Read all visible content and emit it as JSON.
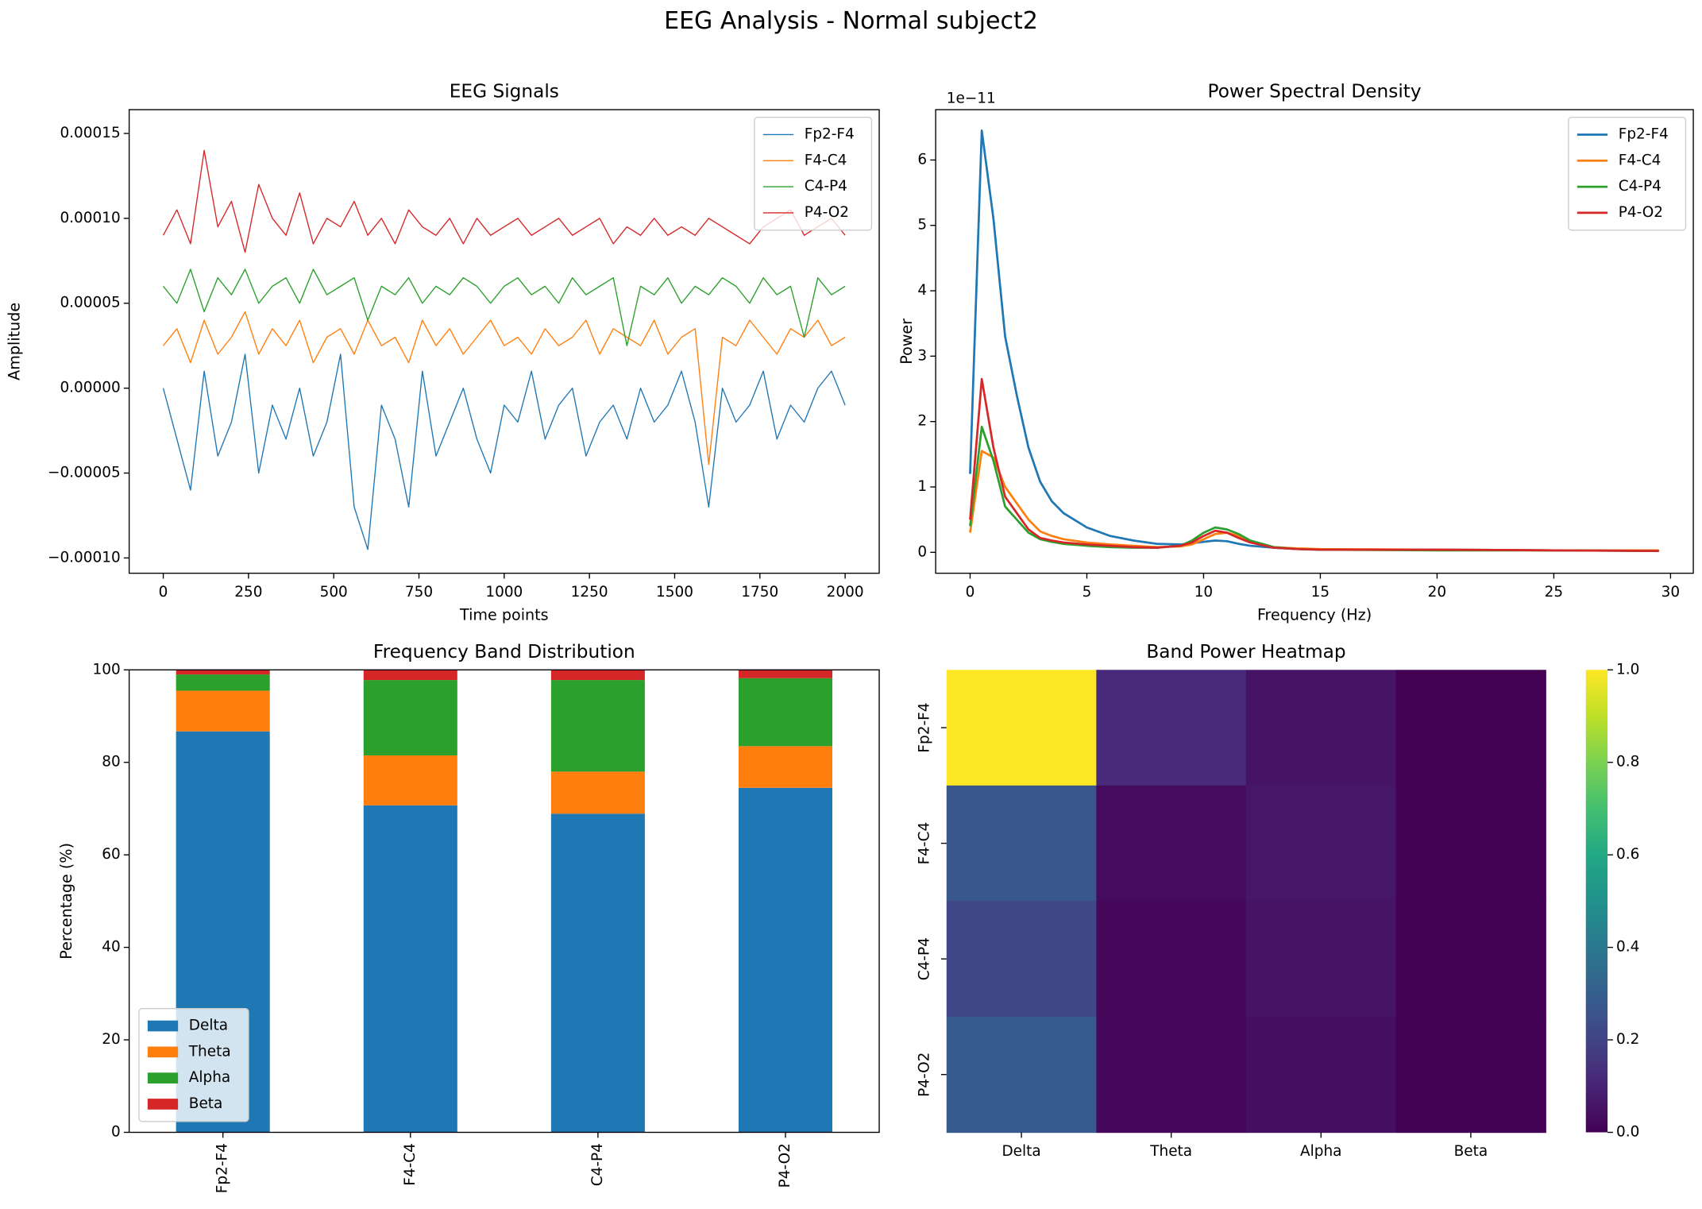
{
  "title": "EEG Analysis - Normal subject2",
  "chart_data": [
    {
      "type": "line",
      "title": "EEG Signals",
      "x_label": "Time points",
      "y_label": "Amplitude",
      "x": [
        0,
        40,
        80,
        120,
        160,
        200,
        240,
        280,
        320,
        360,
        400,
        440,
        480,
        520,
        560,
        600,
        640,
        680,
        720,
        760,
        800,
        840,
        880,
        920,
        960,
        1000,
        1040,
        1080,
        1120,
        1160,
        1200,
        1240,
        1280,
        1320,
        1360,
        1400,
        1440,
        1480,
        1520,
        1560,
        1600,
        1640,
        1680,
        1720,
        1760,
        1800,
        1840,
        1880,
        1920,
        1960,
        2000
      ],
      "series": [
        {
          "name": "Fp2-F4",
          "color": "#1f77b4",
          "values": [
            0,
            -3e-05,
            -6e-05,
            1e-05,
            -4e-05,
            -2e-05,
            2e-05,
            -5e-05,
            -1e-05,
            -3e-05,
            0,
            -4e-05,
            -2e-05,
            2e-05,
            -7e-05,
            -9.5e-05,
            -1e-05,
            -3e-05,
            -7e-05,
            1e-05,
            -4e-05,
            -2e-05,
            0,
            -3e-05,
            -5e-05,
            -1e-05,
            -2e-05,
            1e-05,
            -3e-05,
            -1e-05,
            0,
            -4e-05,
            -2e-05,
            -1e-05,
            -3e-05,
            0,
            -2e-05,
            -1e-05,
            1e-05,
            -2e-05,
            -7e-05,
            0,
            -2e-05,
            -1e-05,
            1e-05,
            -3e-05,
            -1e-05,
            -2e-05,
            0,
            1e-05,
            -1e-05
          ]
        },
        {
          "name": "F4-C4",
          "color": "#ff7f0e",
          "values": [
            2.5e-05,
            3.5e-05,
            1.5e-05,
            4e-05,
            2e-05,
            3e-05,
            4.5e-05,
            2e-05,
            3.5e-05,
            2.5e-05,
            4e-05,
            1.5e-05,
            3e-05,
            3.5e-05,
            2e-05,
            4e-05,
            2.5e-05,
            3e-05,
            1.5e-05,
            4e-05,
            2.5e-05,
            3.5e-05,
            2e-05,
            3e-05,
            4e-05,
            2.5e-05,
            3e-05,
            2e-05,
            3.5e-05,
            2.5e-05,
            3e-05,
            4e-05,
            2e-05,
            3.5e-05,
            3e-05,
            2.5e-05,
            4e-05,
            2e-05,
            3e-05,
            3.5e-05,
            -4.5e-05,
            3e-05,
            2.5e-05,
            4e-05,
            3e-05,
            2e-05,
            3.5e-05,
            3e-05,
            4e-05,
            2.5e-05,
            3e-05
          ]
        },
        {
          "name": "C4-P4",
          "color": "#2ca02c",
          "values": [
            6e-05,
            5e-05,
            7e-05,
            4.5e-05,
            6.5e-05,
            5.5e-05,
            7e-05,
            5e-05,
            6e-05,
            6.5e-05,
            5e-05,
            7e-05,
            5.5e-05,
            6e-05,
            6.5e-05,
            4e-05,
            6e-05,
            5.5e-05,
            6.5e-05,
            5e-05,
            6e-05,
            5.5e-05,
            6.5e-05,
            6e-05,
            5e-05,
            6e-05,
            6.5e-05,
            5.5e-05,
            6e-05,
            5e-05,
            6.5e-05,
            5.5e-05,
            6e-05,
            6.5e-05,
            2.5e-05,
            6e-05,
            5.5e-05,
            6.5e-05,
            5e-05,
            6e-05,
            5.5e-05,
            6.5e-05,
            6e-05,
            5e-05,
            6.5e-05,
            5.5e-05,
            6e-05,
            3e-05,
            6.5e-05,
            5.5e-05,
            6e-05
          ]
        },
        {
          "name": "P4-O2",
          "color": "#d62728",
          "values": [
            9e-05,
            0.000105,
            8.5e-05,
            0.00014,
            9.5e-05,
            0.00011,
            8e-05,
            0.00012,
            0.0001,
            9e-05,
            0.000115,
            8.5e-05,
            0.0001,
            9.5e-05,
            0.00011,
            9e-05,
            0.0001,
            8.5e-05,
            0.000105,
            9.5e-05,
            9e-05,
            0.0001,
            8.5e-05,
            0.0001,
            9e-05,
            9.5e-05,
            0.0001,
            9e-05,
            9.5e-05,
            0.0001,
            9e-05,
            9.5e-05,
            0.0001,
            8.5e-05,
            9.5e-05,
            9e-05,
            0.0001,
            9e-05,
            9.5e-05,
            9e-05,
            0.0001,
            9.5e-05,
            9e-05,
            8.5e-05,
            9.5e-05,
            0.0001,
            0.000105,
            9e-05,
            9.5e-05,
            0.0001,
            9e-05
          ]
        }
      ],
      "line_width": 1,
      "xlim": [
        -100,
        2100
      ],
      "ylim": [
        -0.000109,
        0.000164
      ],
      "xticks": [
        0,
        250,
        500,
        750,
        1000,
        1250,
        1500,
        1750,
        2000
      ],
      "yticks": [
        {
          "value": -0.0001,
          "label": "−0.00010"
        },
        {
          "value": -5e-05,
          "label": "−0.00005"
        },
        {
          "value": 0,
          "label": "0.00000"
        },
        {
          "value": 5e-05,
          "label": "0.00005"
        },
        {
          "value": 0.0001,
          "label": "0.00010"
        },
        {
          "value": 0.00015,
          "label": "0.00015"
        }
      ],
      "legend": "upper right"
    },
    {
      "type": "line",
      "title": "Power Spectral Density",
      "x_label": "Frequency (Hz)",
      "y_label": "Power",
      "offset_label": "1e−11",
      "x": [
        0,
        0.5,
        1,
        1.5,
        2,
        2.5,
        3,
        3.5,
        4,
        5,
        6,
        7,
        8,
        9,
        9.5,
        10,
        10.5,
        11,
        11.5,
        12,
        13,
        14,
        15,
        20,
        25,
        29.5
      ],
      "series": [
        {
          "name": "Fp2-F4",
          "color": "#1f77b4",
          "values": [
            1.2,
            6.45,
            5.1,
            3.3,
            2.4,
            1.6,
            1.08,
            0.78,
            0.6,
            0.38,
            0.25,
            0.18,
            0.13,
            0.12,
            0.14,
            0.16,
            0.18,
            0.17,
            0.13,
            0.1,
            0.07,
            0.05,
            0.04,
            0.04,
            0.03,
            0.02
          ]
        },
        {
          "name": "F4-C4",
          "color": "#ff7f0e",
          "values": [
            0.3,
            1.55,
            1.45,
            1.0,
            0.75,
            0.5,
            0.32,
            0.25,
            0.2,
            0.15,
            0.12,
            0.1,
            0.08,
            0.09,
            0.12,
            0.2,
            0.28,
            0.3,
            0.25,
            0.16,
            0.08,
            0.06,
            0.05,
            0.04,
            0.03,
            0.03
          ]
        },
        {
          "name": "C4-P4",
          "color": "#2ca02c",
          "values": [
            0.4,
            1.92,
            1.4,
            0.7,
            0.5,
            0.3,
            0.2,
            0.16,
            0.13,
            0.1,
            0.08,
            0.07,
            0.07,
            0.1,
            0.18,
            0.3,
            0.38,
            0.35,
            0.28,
            0.18,
            0.08,
            0.05,
            0.04,
            0.03,
            0.03,
            0.02
          ]
        },
        {
          "name": "P4-O2",
          "color": "#d62728",
          "values": [
            0.5,
            2.65,
            1.6,
            0.85,
            0.6,
            0.35,
            0.22,
            0.18,
            0.15,
            0.12,
            0.1,
            0.08,
            0.07,
            0.1,
            0.15,
            0.25,
            0.33,
            0.3,
            0.22,
            0.15,
            0.07,
            0.05,
            0.04,
            0.04,
            0.03,
            0.02
          ]
        }
      ],
      "line_width": 2,
      "xlim": [
        -1.475,
        30.975
      ],
      "ylim": [
        -0.32,
        6.77
      ],
      "xticks": [
        0,
        5,
        10,
        15,
        20,
        25,
        30
      ],
      "yticks": [
        0,
        1,
        2,
        3,
        4,
        5,
        6
      ],
      "legend": "upper right"
    },
    {
      "type": "stacked_bar",
      "title": "Frequency Band Distribution",
      "y_label": "Percentage (%)",
      "categories": [
        "Fp2-F4",
        "F4-C4",
        "C4-P4",
        "P4-O2"
      ],
      "series": [
        {
          "name": "Delta",
          "color": "#1f77b4",
          "values": [
            86.7,
            70.7,
            68.9,
            74.5
          ]
        },
        {
          "name": "Theta",
          "color": "#ff7f0e",
          "values": [
            8.8,
            10.8,
            9.1,
            9.0
          ]
        },
        {
          "name": "Alpha",
          "color": "#2ca02c",
          "values": [
            3.5,
            16.3,
            19.8,
            14.7
          ]
        },
        {
          "name": "Beta",
          "color": "#d62728",
          "values": [
            1.0,
            2.2,
            2.2,
            1.8
          ]
        }
      ],
      "ylim": [
        0,
        100
      ],
      "yticks": [
        0,
        20,
        40,
        60,
        80,
        100
      ],
      "legend": "lower left"
    },
    {
      "type": "heatmap",
      "title": "Band Power Heatmap",
      "categories": [
        "Delta",
        "Theta",
        "Alpha",
        "Beta"
      ],
      "rows": [
        "Fp2-F4",
        "F4-C4",
        "C4-P4",
        "P4-O2"
      ],
      "values": [
        [
          1.0,
          0.12,
          0.05,
          0.0
        ],
        [
          0.27,
          0.03,
          0.06,
          0.0
        ],
        [
          0.21,
          0.02,
          0.05,
          0.0
        ],
        [
          0.28,
          0.02,
          0.04,
          0.0
        ]
      ],
      "colormap": "viridis",
      "clim": [
        0,
        1
      ],
      "cticks": [
        {
          "value": 0,
          "label": "0.0"
        },
        {
          "value": 0.2,
          "label": "0.2"
        },
        {
          "value": 0.4,
          "label": "0.4"
        },
        {
          "value": 0.6,
          "label": "0.6"
        },
        {
          "value": 0.8,
          "label": "0.8"
        },
        {
          "value": 1,
          "label": "1.0"
        }
      ]
    }
  ]
}
